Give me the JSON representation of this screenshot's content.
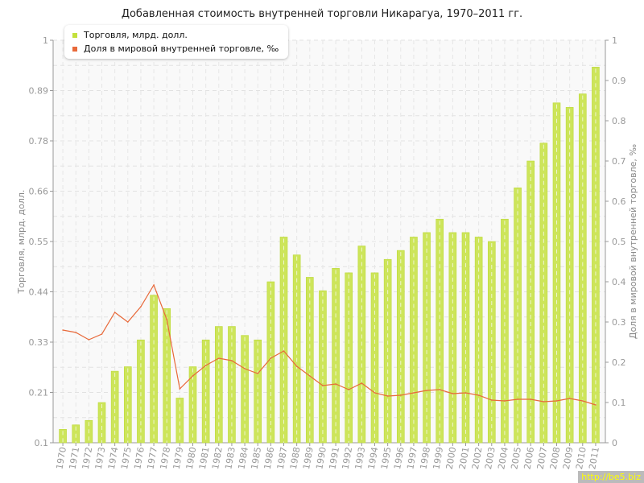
{
  "chart_data": {
    "type": "bar+line",
    "title": "Добавленная стоимость внутренней торговли Никарагуа, 1970–2011 гг.",
    "ylabel_left": "Торговля, млрд. долл.",
    "ylabel_right": "Доля в мировой внутренней торговле, ‰",
    "left_ticks": [
      "0.1",
      "0.21",
      "0.33",
      "0.44",
      "0.55",
      "0.66",
      "0.78",
      "0.89",
      "1"
    ],
    "right_ticks": [
      "0",
      "0.1",
      "0.2",
      "0.3",
      "0.4",
      "0.5",
      "0.6",
      "0.7",
      "0.8",
      "0.9",
      "1"
    ],
    "ylim_left": [
      0.1,
      1
    ],
    "ylim_right": [
      0,
      1
    ],
    "grid": true,
    "legend_position": "top-left",
    "categories": [
      "1970",
      "1971",
      "1972",
      "1973",
      "1974",
      "1975",
      "1976",
      "1977",
      "1978",
      "1979",
      "1980",
      "1981",
      "1982",
      "1983",
      "1984",
      "1985",
      "1986",
      "1987",
      "1988",
      "1989",
      "1990",
      "1991",
      "1992",
      "1993",
      "1994",
      "1995",
      "1996",
      "1997",
      "1998",
      "1999",
      "2000",
      "2001",
      "2002",
      "2003",
      "2004",
      "2005",
      "2006",
      "2007",
      "2008",
      "2009",
      "2010",
      "2011"
    ],
    "series": [
      {
        "name": "Торговля, млрд. долл.",
        "type": "bar",
        "axis": "left",
        "color": "#c3e03c",
        "values": [
          0.13,
          0.14,
          0.15,
          0.19,
          0.26,
          0.27,
          0.33,
          0.43,
          0.4,
          0.2,
          0.27,
          0.33,
          0.36,
          0.36,
          0.34,
          0.33,
          0.46,
          0.56,
          0.52,
          0.47,
          0.44,
          0.49,
          0.48,
          0.54,
          0.48,
          0.51,
          0.53,
          0.56,
          0.57,
          0.6,
          0.57,
          0.57,
          0.56,
          0.55,
          0.6,
          0.67,
          0.73,
          0.77,
          0.86,
          0.85,
          0.88,
          0.94
        ]
      },
      {
        "name": "Доля в мировой внутренней торговле, ‰",
        "type": "line",
        "axis": "right",
        "color": "#e8693a",
        "values": [
          0.28,
          0.274,
          0.256,
          0.27,
          0.324,
          0.3,
          0.338,
          0.392,
          0.306,
          0.134,
          0.166,
          0.192,
          0.21,
          0.204,
          0.184,
          0.172,
          0.21,
          0.228,
          0.19,
          0.166,
          0.142,
          0.146,
          0.132,
          0.148,
          0.124,
          0.116,
          0.118,
          0.124,
          0.13,
          0.132,
          0.122,
          0.124,
          0.118,
          0.106,
          0.104,
          0.108,
          0.108,
          0.102,
          0.104,
          0.11,
          0.104,
          0.094
        ]
      }
    ]
  },
  "watermark": "http://be5.biz"
}
